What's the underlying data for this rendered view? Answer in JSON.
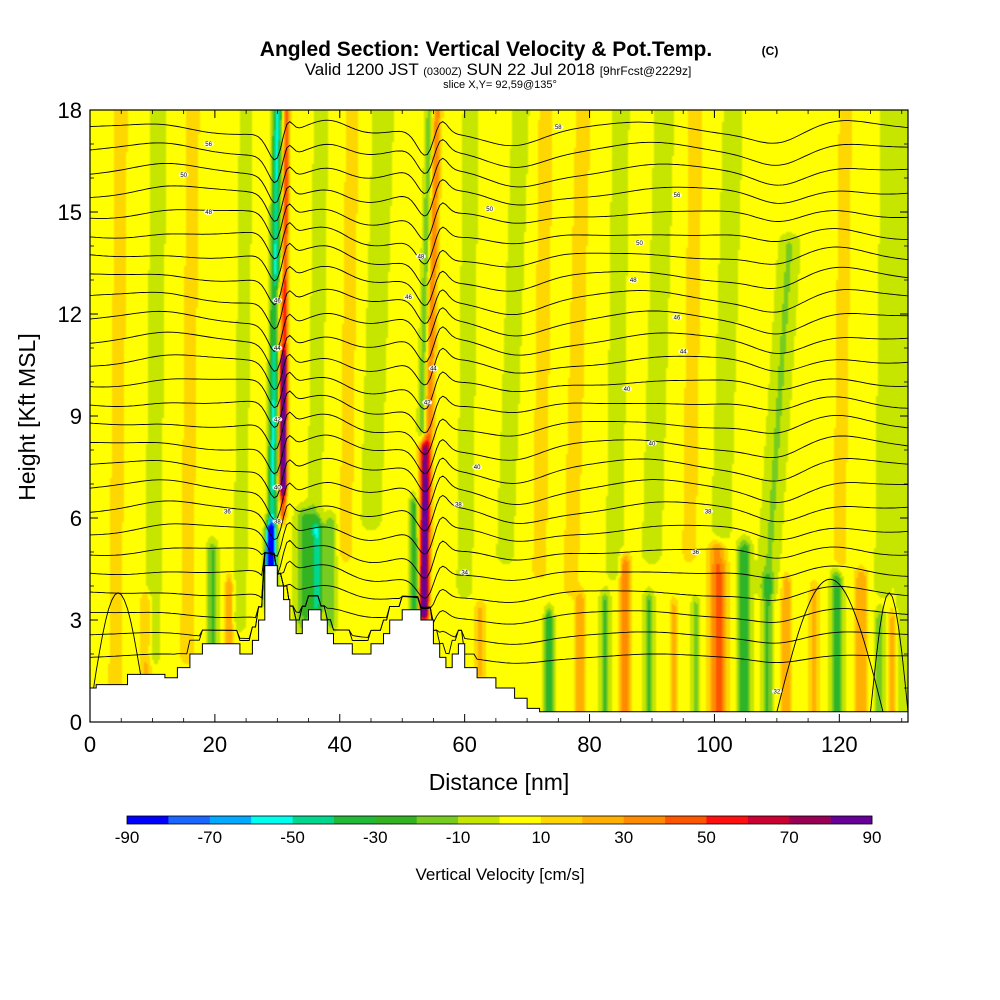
{
  "chart_data": {
    "type": "heatmap",
    "title_main": "Angled Section: Vertical Velocity & Pot.Temp.",
    "title_unit": "(C)",
    "subtitle_line1_a": "Valid 1200 JST",
    "subtitle_line1_b": "(0300Z)",
    "subtitle_line1_c": "SUN 22 Jul 2018",
    "subtitle_line1_d": "[9hrFcst@2229z]",
    "subtitle_line2": "slice X,Y= 92,59@135°",
    "xlabel": "Distance [nm]",
    "ylabel": "Height [Kft MSL]",
    "xlim": [
      0,
      131
    ],
    "ylim": [
      0,
      18
    ],
    "x_ticks": [
      0,
      20,
      40,
      60,
      80,
      100,
      120
    ],
    "y_ticks": [
      0,
      3,
      6,
      9,
      12,
      15,
      18
    ],
    "colorbar": {
      "label": "Vertical Velocity [cm/s]",
      "levels": [
        -90,
        -80,
        -70,
        -60,
        -50,
        -40,
        -30,
        -20,
        -10,
        0,
        10,
        20,
        30,
        40,
        50,
        60,
        70,
        80,
        90
      ],
      "tick_labels": [
        "-90",
        "-70",
        "-50",
        "-30",
        "-10",
        "10",
        "30",
        "50",
        "70",
        "90"
      ],
      "colors": [
        "#0000ff",
        "#1a66ff",
        "#00aaff",
        "#00ffee",
        "#00d890",
        "#22b838",
        "#33b322",
        "#77cc22",
        "#c6e600",
        "#ffff00",
        "#ffd700",
        "#ffb000",
        "#ff8c00",
        "#ff5500",
        "#ff1010",
        "#cc0033",
        "#990055",
        "#660099"
      ]
    },
    "terrain": [
      [
        0,
        1
      ],
      [
        1,
        1
      ],
      [
        1,
        1.1
      ],
      [
        6,
        1.1
      ],
      [
        6,
        1.4
      ],
      [
        12,
        1.4
      ],
      [
        12,
        1.3
      ],
      [
        14,
        1.3
      ],
      [
        14,
        1.6
      ],
      [
        16,
        1.6
      ],
      [
        16,
        2
      ],
      [
        18,
        2
      ],
      [
        18,
        2.3
      ],
      [
        24,
        2.3
      ],
      [
        24,
        2
      ],
      [
        26,
        2
      ],
      [
        26,
        2.4
      ],
      [
        27,
        2.4
      ],
      [
        27,
        3
      ],
      [
        28,
        3
      ],
      [
        28,
        4.6
      ],
      [
        30,
        4.6
      ],
      [
        30,
        4
      ],
      [
        31,
        4
      ],
      [
        31,
        3.6
      ],
      [
        32,
        3.6
      ],
      [
        32,
        3
      ],
      [
        33,
        3
      ],
      [
        33,
        2.6
      ],
      [
        34,
        2.6
      ],
      [
        34,
        3
      ],
      [
        35,
        3
      ],
      [
        35,
        3.3
      ],
      [
        37,
        3.3
      ],
      [
        37,
        3
      ],
      [
        38,
        3
      ],
      [
        38,
        2.6
      ],
      [
        39,
        2.6
      ],
      [
        39,
        2.3
      ],
      [
        41,
        2.3
      ],
      [
        41,
        2.3
      ],
      [
        42,
        2.3
      ],
      [
        42,
        2
      ],
      [
        45,
        2
      ],
      [
        45,
        2.3
      ],
      [
        47,
        2.3
      ],
      [
        47,
        2.6
      ],
      [
        48,
        2.6
      ],
      [
        48,
        3
      ],
      [
        50,
        3
      ],
      [
        50,
        3.3
      ],
      [
        53,
        3.3
      ],
      [
        53,
        3
      ],
      [
        55,
        3
      ],
      [
        55,
        2.3
      ],
      [
        56,
        2.3
      ],
      [
        56,
        1.9
      ],
      [
        57,
        1.9
      ],
      [
        57,
        1.6
      ],
      [
        58,
        1.6
      ],
      [
        58,
        2
      ],
      [
        59,
        2
      ],
      [
        59,
        2.3
      ],
      [
        60,
        2.3
      ],
      [
        60,
        1.6
      ],
      [
        62,
        1.6
      ],
      [
        62,
        1.3
      ],
      [
        65,
        1.3
      ],
      [
        65,
        1
      ],
      [
        68,
        1
      ],
      [
        68,
        0.7
      ],
      [
        70,
        0.7
      ],
      [
        70,
        0.4
      ],
      [
        72,
        0.4
      ],
      [
        72,
        0.3
      ],
      [
        131,
        0.3
      ]
    ],
    "w_features": [
      {
        "x": 29.0,
        "x_top": 30.0,
        "y0": 3.8,
        "y1": 18,
        "sx": 0.7,
        "w": -55
      },
      {
        "x": 30.9,
        "x_top": 31.5,
        "y0": 6.2,
        "y1": 18,
        "sx": 0.5,
        "w": 45
      },
      {
        "x": 30.9,
        "y0": 7.0,
        "y1": 10.5,
        "sx": 0.6,
        "w": 65
      },
      {
        "x": 28.9,
        "y0": 3.6,
        "y1": 5.5,
        "sx": 0.7,
        "w": -88
      },
      {
        "x": 30.2,
        "y0": 11.2,
        "y1": 12.6,
        "sx": 0.8,
        "w": 25
      },
      {
        "x": 36.3,
        "y0": 3.5,
        "y1": 5.6,
        "sx": 0.9,
        "w": -50
      },
      {
        "x": 34.4,
        "y0": 3.0,
        "y1": 6.0,
        "sx": 1.4,
        "w": -25
      },
      {
        "x": 38.5,
        "y0": 3.0,
        "y1": 5.8,
        "sx": 1.0,
        "w": -20
      },
      {
        "x": 53.5,
        "x_top": 55.5,
        "y0": 3.3,
        "y1": 18,
        "sx": 0.8,
        "w": 35
      },
      {
        "x": 52.5,
        "x_top": 54.5,
        "y0": 3.3,
        "y1": 18,
        "sx": 0.7,
        "w": -25
      },
      {
        "x": 53.4,
        "y0": 3.3,
        "y1": 8.0,
        "sx": 0.8,
        "w": 75
      },
      {
        "x": 51.8,
        "y0": 3.5,
        "y1": 6.3,
        "sx": 0.6,
        "w": -30
      },
      {
        "x": 19.6,
        "y0": 2.0,
        "y1": 5.0,
        "sx": 0.8,
        "w": -25
      },
      {
        "x": 22.3,
        "y0": 2.3,
        "y1": 4.0,
        "sx": 0.6,
        "w": 25
      },
      {
        "x": 9.0,
        "y0": 1.1,
        "y1": 3.5,
        "sx": 0.9,
        "w": 20
      },
      {
        "x": 62.5,
        "y0": 1.5,
        "y1": 3.2,
        "sx": 0.9,
        "w": 20
      },
      {
        "x": 85.7,
        "y0": 0.3,
        "y1": 4.6,
        "sx": 0.9,
        "w": 35
      },
      {
        "x": 100.6,
        "y0": 0.3,
        "y1": 5.0,
        "sx": 1.4,
        "w": 40
      },
      {
        "x": 104.8,
        "y0": 0.3,
        "y1": 5.0,
        "sx": 1.0,
        "w": -35
      },
      {
        "x": 119.6,
        "y0": 0.3,
        "y1": 4.2,
        "sx": 0.9,
        "w": -35
      },
      {
        "x": 123.5,
        "y0": 0.3,
        "y1": 4.2,
        "sx": 1.0,
        "w": 25
      },
      {
        "x": 116.0,
        "y0": 0.3,
        "y1": 3.8,
        "sx": 0.8,
        "w": 20
      },
      {
        "x": 78.5,
        "y0": 0.3,
        "y1": 3.5,
        "sx": 0.8,
        "w": 25
      },
      {
        "x": 73.5,
        "y0": 0.3,
        "y1": 3.0,
        "sx": 0.7,
        "w": -35
      },
      {
        "x": 82.5,
        "y0": 0.3,
        "y1": 3.5,
        "sx": 0.8,
        "w": -25
      },
      {
        "x": 89.5,
        "y0": 0.3,
        "y1": 3.5,
        "sx": 0.8,
        "w": -25
      },
      {
        "x": 93.5,
        "y0": 0.3,
        "y1": 3.3,
        "sx": 0.7,
        "w": 20
      },
      {
        "x": 97.0,
        "y0": 0.3,
        "y1": 3.3,
        "sx": 0.7,
        "w": -20
      },
      {
        "x": 108.5,
        "y0": 0.3,
        "y1": 4.0,
        "sx": 0.8,
        "w": -25
      },
      {
        "x": 111.5,
        "y0": 0.3,
        "y1": 4.0,
        "sx": 0.8,
        "w": 25
      },
      {
        "x": 126.5,
        "y0": 0.3,
        "y1": 3.0,
        "sx": 0.8,
        "w": -20
      },
      {
        "x": 128.5,
        "y0": 0.3,
        "y1": 3.0,
        "sx": 0.6,
        "w": 20
      },
      {
        "x": 108.5,
        "x_top": 112.0,
        "y0": 4.0,
        "y1": 14.0,
        "sx": 1.6,
        "w": -15
      },
      {
        "x": 66.5,
        "x_top": 69.0,
        "y0": 5.0,
        "y1": 18,
        "sx": 1.3,
        "w": -12
      },
      {
        "x": 90.0,
        "x_top": 92.0,
        "y0": 5.0,
        "y1": 18,
        "sx": 1.5,
        "w": -12
      },
      {
        "x": 77.0,
        "x_top": 79.0,
        "y0": 4.0,
        "y1": 18,
        "sx": 1.4,
        "w": 12
      },
      {
        "x": 45.0,
        "x_top": 47.0,
        "y0": 6.0,
        "y1": 18,
        "sx": 1.6,
        "w": -12
      },
      {
        "x": 15.5,
        "x_top": 16.5,
        "y0": 2.0,
        "y1": 18,
        "sx": 1.2,
        "w": 12
      },
      {
        "x": 24.0,
        "x_top": 25.0,
        "y0": 3.0,
        "y1": 18,
        "sx": 1.0,
        "w": -12
      },
      {
        "x": 10.0,
        "x_top": 11.0,
        "y0": 2.0,
        "y1": 18,
        "sx": 1.2,
        "w": -12
      },
      {
        "x": 4.0,
        "x_top": 5.0,
        "y0": 1.0,
        "y1": 18,
        "sx": 1.2,
        "w": 12
      },
      {
        "x": 127.0,
        "x_top": 128.0,
        "y0": 4.0,
        "y1": 18,
        "sx": 1.3,
        "w": -12
      },
      {
        "x": 120.0,
        "x_top": 121.0,
        "y0": 4.5,
        "y1": 18,
        "sx": 1.2,
        "w": 12
      },
      {
        "x": 101.0,
        "x_top": 103.0,
        "y0": 5.0,
        "y1": 18,
        "sx": 1.5,
        "w": -12
      },
      {
        "x": 96.0,
        "x_top": 97.0,
        "y0": 5.0,
        "y1": 18,
        "sx": 1.3,
        "w": 12
      },
      {
        "x": 84.0,
        "x_top": 85.0,
        "y0": 4.5,
        "y1": 18,
        "sx": 1.3,
        "w": -12
      },
      {
        "x": 72.0,
        "x_top": 73.0,
        "y0": 4.5,
        "y1": 18,
        "sx": 1.3,
        "w": 12
      },
      {
        "x": 60.0,
        "x_top": 61.0,
        "y0": 4.0,
        "y1": 18,
        "sx": 1.2,
        "w": -12
      },
      {
        "x": 41.0,
        "x_top": 42.0,
        "y0": 5.0,
        "y1": 18,
        "sx": 1.2,
        "w": 12
      },
      {
        "x": 36.0,
        "x_top": 37.0,
        "y0": 6.0,
        "y1": 18,
        "sx": 1.1,
        "w": -12
      },
      {
        "x": 130.0,
        "y0": 0.3,
        "y1": 18,
        "sx": 1.0,
        "w": -10
      }
    ],
    "theta": {
      "base_height": 1.9,
      "spacing": 0.62,
      "count": 26,
      "labels": [
        {
          "x": 19,
          "y": 17.0,
          "text": "56"
        },
        {
          "x": 15,
          "y": 16.1,
          "text": "50"
        },
        {
          "x": 19,
          "y": 15.0,
          "text": "48"
        },
        {
          "x": 64,
          "y": 15.1,
          "text": "50"
        },
        {
          "x": 94,
          "y": 15.5,
          "text": "56"
        },
        {
          "x": 75,
          "y": 17.5,
          "text": "58"
        },
        {
          "x": 88,
          "y": 14.1,
          "text": "50"
        },
        {
          "x": 87,
          "y": 13.0,
          "text": "48"
        },
        {
          "x": 94,
          "y": 11.9,
          "text": "46"
        },
        {
          "x": 95,
          "y": 10.9,
          "text": "44"
        },
        {
          "x": 86,
          "y": 9.8,
          "text": "40"
        },
        {
          "x": 90,
          "y": 8.2,
          "text": "40"
        },
        {
          "x": 62,
          "y": 7.5,
          "text": "40"
        },
        {
          "x": 59,
          "y": 6.4,
          "text": "38"
        },
        {
          "x": 99,
          "y": 6.2,
          "text": "38"
        },
        {
          "x": 97,
          "y": 5.0,
          "text": "36"
        },
        {
          "x": 22,
          "y": 6.2,
          "text": "36"
        },
        {
          "x": 60,
          "y": 4.4,
          "text": "34"
        },
        {
          "x": 110,
          "y": 0.9,
          "text": "32"
        },
        {
          "x": 30,
          "y": 12.4,
          "text": "46"
        },
        {
          "x": 30,
          "y": 11.0,
          "text": "44"
        },
        {
          "x": 30,
          "y": 8.9,
          "text": "42"
        },
        {
          "x": 30,
          "y": 6.9,
          "text": "40"
        },
        {
          "x": 30,
          "y": 5.9,
          "text": "38"
        },
        {
          "x": 53,
          "y": 13.7,
          "text": "48"
        },
        {
          "x": 51,
          "y": 12.5,
          "text": "46"
        },
        {
          "x": 55,
          "y": 10.4,
          "text": "44"
        },
        {
          "x": 54,
          "y": 9.4,
          "text": "42"
        }
      ]
    }
  }
}
